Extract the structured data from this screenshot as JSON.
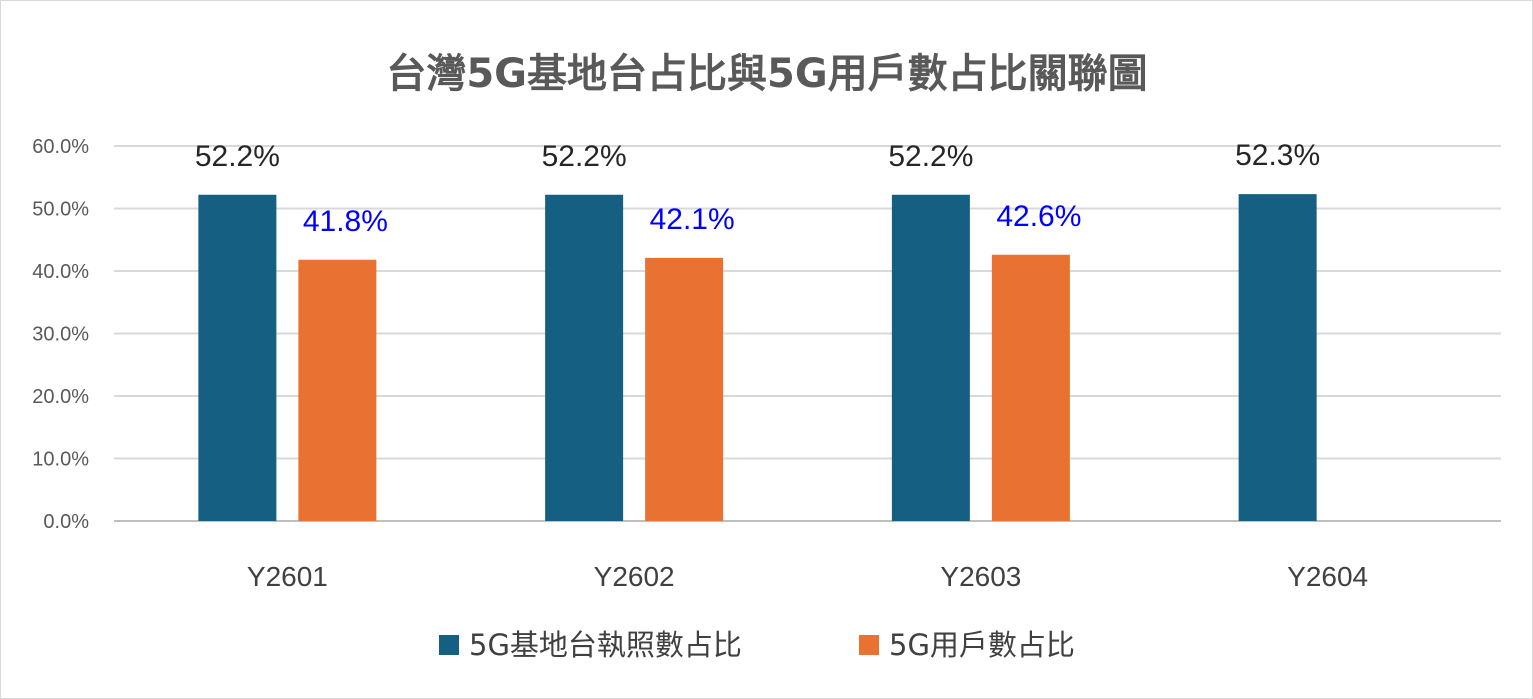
{
  "chart_data": {
    "type": "bar",
    "title": "台灣5G基地台占比與5G用戶數占比關聯圖",
    "categories": [
      "Y2601",
      "Y2602",
      "Y2603",
      "Y2604"
    ],
    "ylim": [
      0,
      60
    ],
    "yticks": [
      "0.0%",
      "10.0%",
      "20.0%",
      "30.0%",
      "40.0%",
      "50.0%",
      "60.0%"
    ],
    "grid": true,
    "legend_position": "bottom",
    "series": [
      {
        "name": "5G基地台執照數占比",
        "color": "#155f82",
        "values": [
          52.2,
          52.2,
          52.2,
          52.3
        ],
        "labels": [
          "52.2%",
          "52.2%",
          "52.2%",
          "52.3%"
        ],
        "label_color": "#262626"
      },
      {
        "name": "5G用戶數占比",
        "color": "#e97132",
        "values": [
          41.8,
          42.1,
          42.6,
          null
        ],
        "labels": [
          "41.8%",
          "42.1%",
          "42.6%",
          null
        ],
        "label_color": "#0000ff"
      }
    ]
  }
}
